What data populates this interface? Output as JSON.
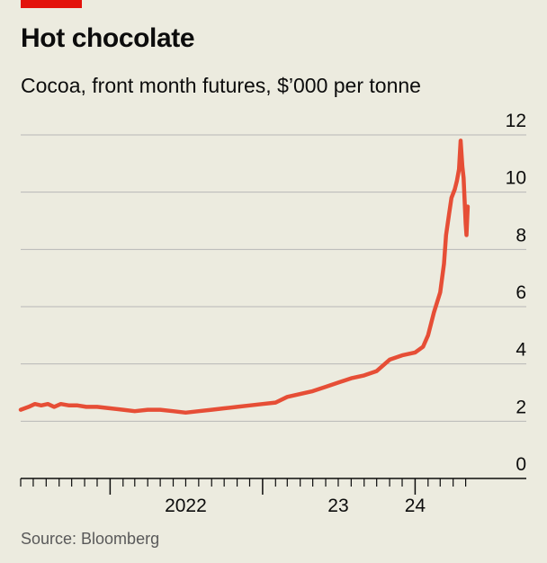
{
  "header": {
    "title": "Hot chocolate",
    "subtitle": "Cocoa, front month futures, $’000 per tonne"
  },
  "footer": {
    "source": "Source: Bloomberg"
  },
  "colors": {
    "accent": "#E3120B",
    "line": "#E64E36",
    "background": "#ECEBDF",
    "grid": "#B7B7B7",
    "axis": "#0C0C0C"
  },
  "chart_data": {
    "type": "line",
    "title": "Hot chocolate",
    "subtitle": "Cocoa, front month futures, $’000 per tonne",
    "ylim": [
      0,
      12
    ],
    "yticks": [
      0,
      2,
      4,
      6,
      8,
      10,
      12
    ],
    "y_axis_side": "right",
    "xlim": [
      "2021-06-01",
      "2024-06-01"
    ],
    "xtick_labels": [
      {
        "label": "2022",
        "date": "2022-07-01"
      },
      {
        "label": "23",
        "date": "2023-07-01"
      },
      {
        "label": "24",
        "date": "2024-01-01"
      }
    ],
    "grid": true,
    "series": [
      {
        "points": [
          [
            "2021-06-01",
            2.4
          ],
          [
            "2021-06-20",
            2.5
          ],
          [
            "2021-07-05",
            2.6
          ],
          [
            "2021-07-20",
            2.55
          ],
          [
            "2021-08-05",
            2.6
          ],
          [
            "2021-08-20",
            2.5
          ],
          [
            "2021-09-05",
            2.6
          ],
          [
            "2021-09-25",
            2.55
          ],
          [
            "2021-10-15",
            2.55
          ],
          [
            "2021-11-05",
            2.5
          ],
          [
            "2021-12-01",
            2.5
          ],
          [
            "2022-01-01",
            2.45
          ],
          [
            "2022-02-01",
            2.4
          ],
          [
            "2022-03-01",
            2.35
          ],
          [
            "2022-04-01",
            2.4
          ],
          [
            "2022-05-01",
            2.4
          ],
          [
            "2022-06-01",
            2.35
          ],
          [
            "2022-07-01",
            2.3
          ],
          [
            "2022-08-01",
            2.35
          ],
          [
            "2022-09-01",
            2.4
          ],
          [
            "2022-10-01",
            2.45
          ],
          [
            "2022-11-01",
            2.5
          ],
          [
            "2022-12-01",
            2.55
          ],
          [
            "2023-01-01",
            2.6
          ],
          [
            "2023-02-01",
            2.65
          ],
          [
            "2023-03-01",
            2.85
          ],
          [
            "2023-04-01",
            2.95
          ],
          [
            "2023-05-01",
            3.05
          ],
          [
            "2023-06-01",
            3.2
          ],
          [
            "2023-07-01",
            3.35
          ],
          [
            "2023-08-01",
            3.5
          ],
          [
            "2023-09-01",
            3.6
          ],
          [
            "2023-10-01",
            3.75
          ],
          [
            "2023-11-01",
            4.15
          ],
          [
            "2023-12-01",
            4.3
          ],
          [
            "2024-01-01",
            4.4
          ],
          [
            "2024-01-20",
            4.6
          ],
          [
            "2024-02-01",
            5.0
          ],
          [
            "2024-02-15",
            5.8
          ],
          [
            "2024-03-01",
            6.5
          ],
          [
            "2024-03-10",
            7.5
          ],
          [
            "2024-03-15",
            8.5
          ],
          [
            "2024-03-22",
            9.2
          ],
          [
            "2024-03-28",
            9.8
          ],
          [
            "2024-04-05",
            10.1
          ],
          [
            "2024-04-10",
            10.4
          ],
          [
            "2024-04-15",
            10.8
          ],
          [
            "2024-04-19",
            11.8
          ],
          [
            "2024-04-23",
            10.9
          ],
          [
            "2024-04-26",
            10.5
          ],
          [
            "2024-05-01",
            8.9
          ],
          [
            "2024-05-03",
            8.5
          ],
          [
            "2024-05-06",
            9.5
          ]
        ]
      }
    ]
  }
}
